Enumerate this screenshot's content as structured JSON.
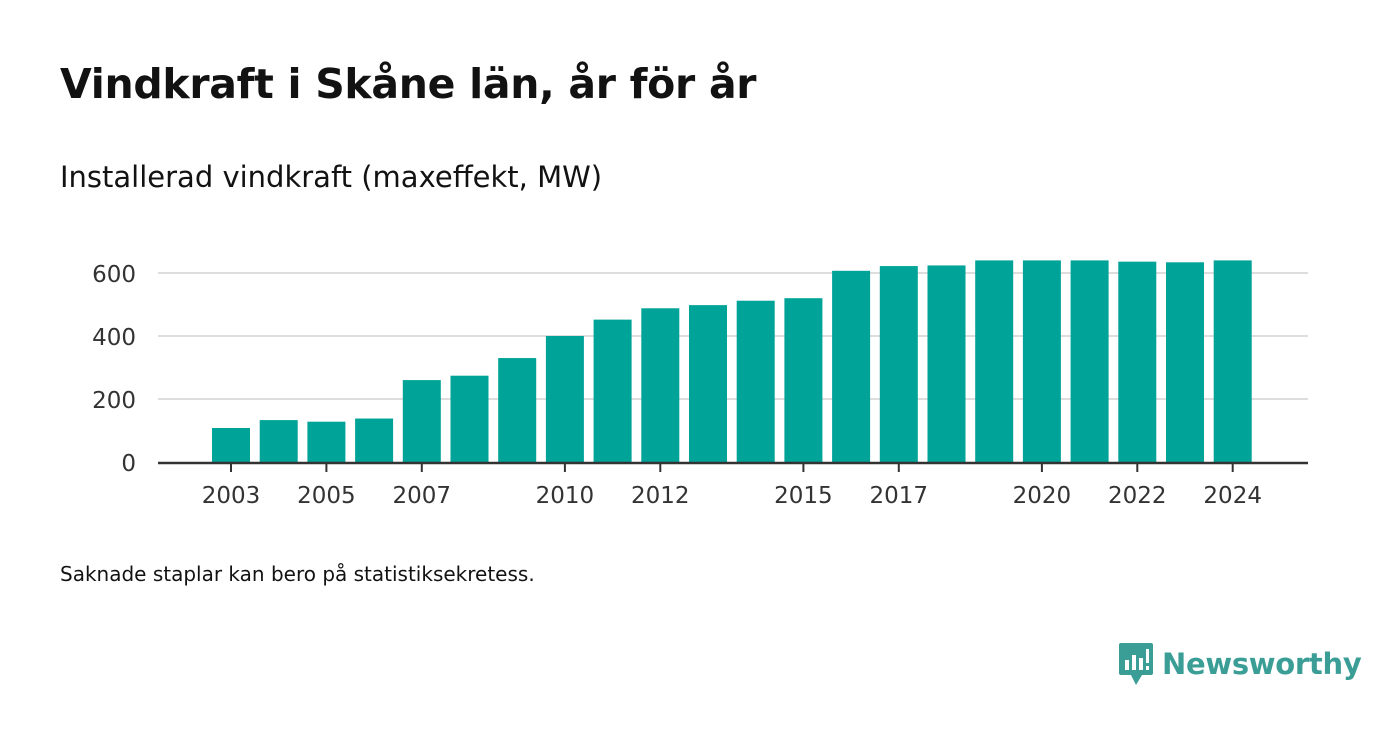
{
  "title": "Vindkraft i Skåne län, år för år",
  "subtitle": "Installerad vindkraft (maxeffekt, MW)",
  "note": "Saknade staplar kan bero på statistiksekretess.",
  "brand": {
    "name": "Newsworthy",
    "icon": "newsworthy-logo-icon",
    "color": "#3a9e96"
  },
  "colors": {
    "bar": "#00a398",
    "grid": "#dddddd",
    "axis": "#333333",
    "tick_text": "#333333"
  },
  "chart_data": {
    "type": "bar",
    "title": "Vindkraft i Skåne län, år för år",
    "subtitle": "Installerad vindkraft (maxeffekt, MW)",
    "xlabel": "",
    "ylabel": "",
    "categories": [
      "2003",
      "2004",
      "2005",
      "2006",
      "2007",
      "2008",
      "2009",
      "2010",
      "2011",
      "2012",
      "2013",
      "2014",
      "2015",
      "2016",
      "2017",
      "2018",
      "2019",
      "2020",
      "2021",
      "2022",
      "2023",
      "2024"
    ],
    "x_tick_labels": [
      "2003",
      "2005",
      "2007",
      "2010",
      "2012",
      "2015",
      "2017",
      "2020",
      "2022",
      "2024"
    ],
    "values": [
      108,
      133,
      128,
      138,
      260,
      274,
      330,
      400,
      452,
      488,
      498,
      512,
      520,
      607,
      622,
      624,
      640,
      640,
      640,
      636,
      634,
      640
    ],
    "ylim": [
      0,
      700
    ],
    "y_ticks": [
      0,
      200,
      400,
      600
    ],
    "y_tick_labels": [
      "0",
      "200",
      "400",
      "600"
    ],
    "grid": true,
    "legend": false
  }
}
